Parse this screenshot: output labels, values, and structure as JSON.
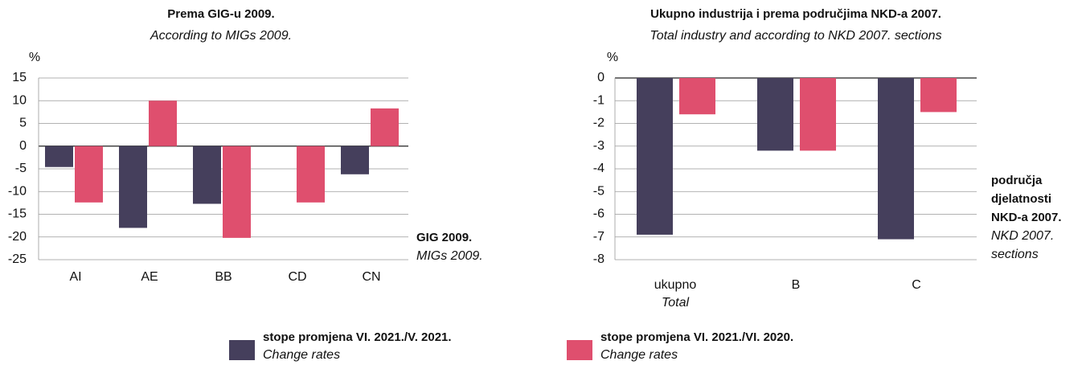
{
  "chart_data": [
    {
      "type": "bar",
      "title": "Prema GIG-u 2009.",
      "subtitle": "According to MIGs 2009.",
      "y_label": "%",
      "x_label": [
        "GIG 2009."
      ],
      "x_label_en": [
        "MIGs 2009."
      ],
      "categories": [
        {
          "label": "AI"
        },
        {
          "label": "AE"
        },
        {
          "label": "BB"
        },
        {
          "label": "CD"
        },
        {
          "label": "CN"
        }
      ],
      "series": [
        {
          "name": "stope promjena VI. 2021./V. 2021.",
          "name_en": "Change rates",
          "color": "#453f5c",
          "values": [
            -4.6,
            -18,
            -12.7,
            0,
            -6.2
          ]
        },
        {
          "name": "stope promjena VI. 2021./VI. 2020.",
          "name_en": "Change rates",
          "color": "#df4f6e",
          "values": [
            -12.4,
            10,
            -20.2,
            -12.4,
            8.3
          ]
        }
      ],
      "ylim": [
        -25,
        15
      ],
      "yticks": [
        -25,
        -20,
        -15,
        -10,
        -5,
        0,
        5,
        10,
        15
      ],
      "grid": true
    },
    {
      "type": "bar",
      "title": "Ukupno industrija i prema područjima NKD-a 2007.",
      "subtitle": "Total industry and according to NKD 2007. sections",
      "y_label": "%",
      "x_label": [
        "područja",
        "djelatnosti",
        "NKD-a 2007."
      ],
      "x_label_en": [
        "NKD 2007.",
        "sections"
      ],
      "categories": [
        {
          "label": "ukupno",
          "label_en": "Total"
        },
        {
          "label": "B"
        },
        {
          "label": "C"
        }
      ],
      "series": [
        {
          "name": "stope promjena VI. 2021./V. 2021.",
          "name_en": "Change rates",
          "color": "#453f5c",
          "values": [
            -6.9,
            -3.2,
            -7.1
          ]
        },
        {
          "name": "stope promjena VI. 2021./VI. 2020.",
          "name_en": "Change rates",
          "color": "#df4f6e",
          "values": [
            -1.6,
            -3.2,
            -1.5
          ]
        }
      ],
      "ylim": [
        -8,
        0
      ],
      "yticks": [
        -8,
        -7,
        -6,
        -5,
        -4,
        -3,
        -2,
        -1,
        0
      ],
      "grid": true
    }
  ]
}
